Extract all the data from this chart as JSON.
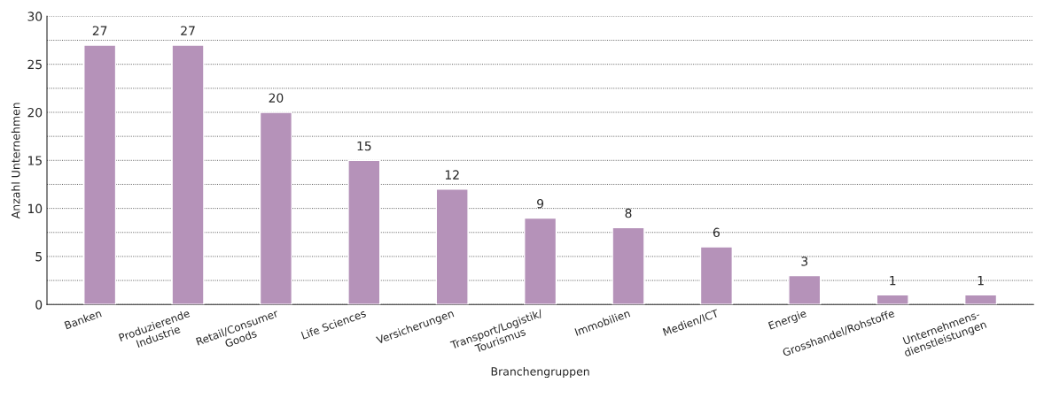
{
  "chart_data": {
    "type": "bar",
    "categories": [
      "Banken",
      "Produzierende\nIndustrie",
      "Retail/Consumer\nGoods",
      "Life Sciences",
      "Versicherungen",
      "Transport/Logistik/\nTourismus",
      "Immobilien",
      "Medien/ICT",
      "Energie",
      "Grosshandel/Rohstoffe",
      "Unternehmens-\ndienstleistungen"
    ],
    "values": [
      27,
      27,
      20,
      15,
      12,
      9,
      8,
      6,
      3,
      1,
      1
    ],
    "color": "#b592b9",
    "xlabel": "Branchengruppen",
    "ylabel": "Anzahl Unternehmen",
    "ylim": [
      0,
      30
    ],
    "yticks": [
      0,
      {
        "value": 2.5,
        "label": null
      },
      5,
      {
        "value": 7.5,
        "label": null
      },
      10,
      {
        "value": 12.5,
        "label": null
      },
      15,
      {
        "value": 17.5,
        "label": null
      },
      20,
      {
        "value": 22.5,
        "label": null
      },
      25,
      {
        "value": 27.5,
        "label": null
      },
      30
    ],
    "grid": "y",
    "data_labels": true
  }
}
